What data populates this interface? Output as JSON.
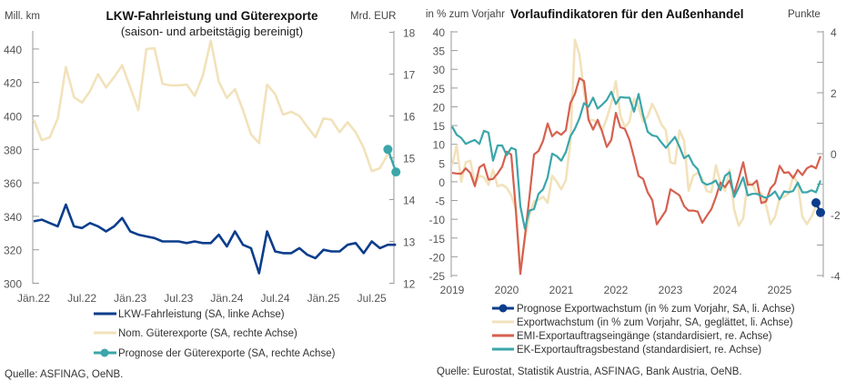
{
  "colors": {
    "lkw": "#0b3d8c",
    "exports": "#f2e2bb",
    "forecast_left": "#3aa6aa",
    "emi": "#d6604f",
    "ek": "#3aa6aa",
    "forecast_right": "#0b3d8c"
  },
  "chart_data": [
    {
      "type": "line",
      "title": "LKW-Fahrleistung und Güterexporte",
      "subtitle": "(saison- und arbeitstägig bereinigt)",
      "ylabel_left": "Mill. km",
      "ylabel_right": "Mrd. EUR",
      "ylim_left": [
        300,
        450
      ],
      "ylim_right": [
        12,
        18
      ],
      "yticks_left": [
        "440",
        "420",
        "400",
        "380",
        "360",
        "340",
        "320",
        "300"
      ],
      "yticks_right": [
        "18",
        "17",
        "16",
        "15",
        "14",
        "13",
        "12"
      ],
      "xticks": [
        "Jän.22",
        "Jul.22",
        "Jän.23",
        "Jul.23",
        "Jän.24",
        "Jul.24",
        "Jän.25",
        "Jul.25"
      ],
      "x_start": "2022-01",
      "x_end": "2025-10",
      "grid": false,
      "legend_position": "bottom",
      "series": [
        {
          "name": "LKW-Fahrleistung (SA, linke Achse)",
          "axis": "left",
          "start": "2022-01",
          "values": [
            337,
            338,
            336,
            334,
            347,
            334,
            333,
            336,
            334,
            331,
            334,
            339,
            331,
            329,
            328,
            327,
            325,
            325,
            325,
            324,
            325,
            324,
            324,
            329,
            322,
            331,
            323,
            321,
            306,
            331,
            319,
            318,
            318,
            321,
            317,
            315,
            320,
            319,
            319,
            323,
            324,
            318,
            325,
            321,
            323,
            323
          ]
        },
        {
          "name": "Nom. Güterexporte (SA, rechte Achse)",
          "axis": "right",
          "start": "2022-01",
          "values": [
            15.91,
            15.42,
            15.49,
            15.94,
            17.17,
            16.45,
            16.32,
            16.59,
            17.0,
            16.68,
            16.93,
            17.21,
            16.68,
            16.14,
            17.6,
            17.62,
            16.77,
            16.73,
            16.73,
            16.75,
            16.48,
            16.95,
            17.8,
            16.82,
            16.43,
            16.64,
            16.14,
            15.56,
            15.35,
            16.75,
            16.52,
            16.03,
            16.1,
            16.0,
            15.74,
            15.49,
            15.94,
            15.91,
            15.61,
            15.85,
            15.61,
            15.24,
            14.68,
            14.75,
            15.09
          ]
        },
        {
          "name": "Prognose der Güterexporte (SA, rechte Achse)",
          "axis": "right",
          "start": "2025-09",
          "values": [
            15.2,
            14.66
          ]
        }
      ],
      "source": "Quelle: ASFINAG, OeNB."
    },
    {
      "type": "line",
      "title": "Vorlaufindikatoren für den Außenhandel",
      "ylabel_left": "in % zum Vorjahr",
      "ylabel_right": "Punkte",
      "ylim_left": [
        -25,
        40
      ],
      "ylim_right": [
        -4,
        4
      ],
      "yticks_left": [
        "40",
        "35",
        "30",
        "25",
        "20",
        "15",
        "10",
        "5",
        "0",
        "-5",
        "-10",
        "-15",
        "-20",
        "-25"
      ],
      "yticks_right": [
        "4",
        "2",
        "0",
        "-2",
        "-4"
      ],
      "xticks": [
        "2019",
        "2020",
        "2021",
        "2022",
        "2023",
        "2024",
        "2025"
      ],
      "x_start": "2019-01",
      "x_end": "2025-10",
      "grid": false,
      "legend_position": "bottom",
      "series": [
        {
          "name": "Prognose Exportwachstum (in % zum Vorjahr, SA, li. Achse)",
          "axis": "left",
          "start": "2025-09",
          "values": [
            -5.6,
            -8.2
          ]
        },
        {
          "name": "Exportwachstum (in % zum Vorjahr, SA, geglättet, li. Achse)",
          "axis": "left",
          "start": "2019-01",
          "values": [
            4.4,
            9.7,
            0,
            5.2,
            5.6,
            -0.4,
            1.6,
            1.2,
            -0.8,
            3.2,
            -1.2,
            -0.8,
            -1.6,
            -3.6,
            -7.3,
            -23.4,
            -15.3,
            -8.9,
            -5.2,
            -4.8,
            -4.0,
            -5.6,
            1.6,
            0,
            -2.0,
            0.4,
            10.5,
            37.9,
            33.9,
            24,
            16.5,
            16.5,
            15.5,
            13.7,
            16.9,
            21.0,
            26.8,
            17.7,
            14.5,
            16.1,
            22.2,
            20.0,
            16.1,
            17.4,
            20.8,
            18.4,
            15.3,
            13.7,
            5.2,
            4.8,
            13.7,
            10.9,
            -2.4,
            1.6,
            2.4,
            0.8,
            -2.5,
            -2.8,
            4.4,
            -0.4,
            -2.4,
            3.2,
            -7.3,
            -11.7,
            -9.7,
            0,
            -0.6,
            -3.2,
            -3.1,
            -6.1,
            -11.3,
            -9.3,
            -4.4,
            -4.0,
            -3.1,
            1.6,
            -0.4,
            -9.3,
            -11.3,
            -9.3,
            -6.6
          ]
        },
        {
          "name": "EMI-Exportauftragseingänge (standardisiert, re. Achse)",
          "axis": "right",
          "start": "2019-01",
          "values": [
            -0.63,
            -0.65,
            -0.66,
            -0.48,
            -0.63,
            -1.07,
            -0.45,
            -0.35,
            -0.85,
            -0.83,
            -0.65,
            -0.43,
            0.07,
            -0.03,
            -1.82,
            -3.95,
            -2.72,
            -1.42,
            -0.03,
            0.09,
            0.42,
            0.99,
            0.57,
            0.72,
            0.62,
            0.77,
            1.66,
            1.96,
            2.48,
            2.38,
            1.11,
            0.79,
            1.11,
            0.72,
            0.22,
            0.45,
            1.34,
            0.87,
            0.81,
            0.45,
            -0.13,
            -0.73,
            -0.83,
            -1.27,
            -1.52,
            -2.32,
            -2.1,
            -1.87,
            -1.17,
            -1.27,
            -1.37,
            -1.72,
            -1.87,
            -1.87,
            -1.9,
            -2.27,
            -2.04,
            -1.82,
            -1.42,
            -0.95,
            -1.1,
            -0.88,
            -1.32,
            -0.83,
            -0.28,
            -1.02,
            -1.02,
            -0.88,
            -1.62,
            -1.57,
            -1.14,
            -0.97,
            -0.4,
            -0.63,
            -0.61,
            -0.8,
            -0.53,
            -0.7,
            -0.48,
            -0.4,
            -0.48,
            -0.08
          ]
        },
        {
          "name": "EK-Exportauftragsbestand (standardisiert, re. Achse)",
          "axis": "right",
          "start": "2019-01",
          "values": [
            0.89,
            0.62,
            0.52,
            0.32,
            0.39,
            0.45,
            0.32,
            0.75,
            0.69,
            -0.23,
            0.27,
            0.27,
            -0.05,
            0.19,
            0.13,
            -1.72,
            -2.47,
            -1.87,
            -1.82,
            -1.32,
            -1.17,
            -0.78,
            0,
            -0.08,
            -0.23,
            0.05,
            0.57,
            0.82,
            1.16,
            1.66,
            1.54,
            1.84,
            1.48,
            1.61,
            1.76,
            2.03,
            1.63,
            1.86,
            1.84,
            1.84,
            1.38,
            1.96,
            1.26,
            0.72,
            0.6,
            0.57,
            0.37,
            0.19,
            0.37,
            0.55,
            0.22,
            -0.15,
            -0.05,
            -0.35,
            -0.51,
            -0.93,
            -1.02,
            -0.97,
            -0.88,
            -1.2,
            -0.73,
            -0.61,
            -1.42,
            -1.12,
            -0.78,
            -1.37,
            -1.32,
            -1.32,
            -1.39,
            -1.45,
            -1.37,
            -1.24,
            -1.5,
            -1.24,
            -1.27,
            -1.22,
            -0.95,
            -1.27,
            -1.27,
            -1.2,
            -1.27,
            -0.88
          ]
        }
      ],
      "source": "Quelle: Eurostat, Statistik Austria, ASFINAG, Bank Austria, OeNB."
    }
  ]
}
